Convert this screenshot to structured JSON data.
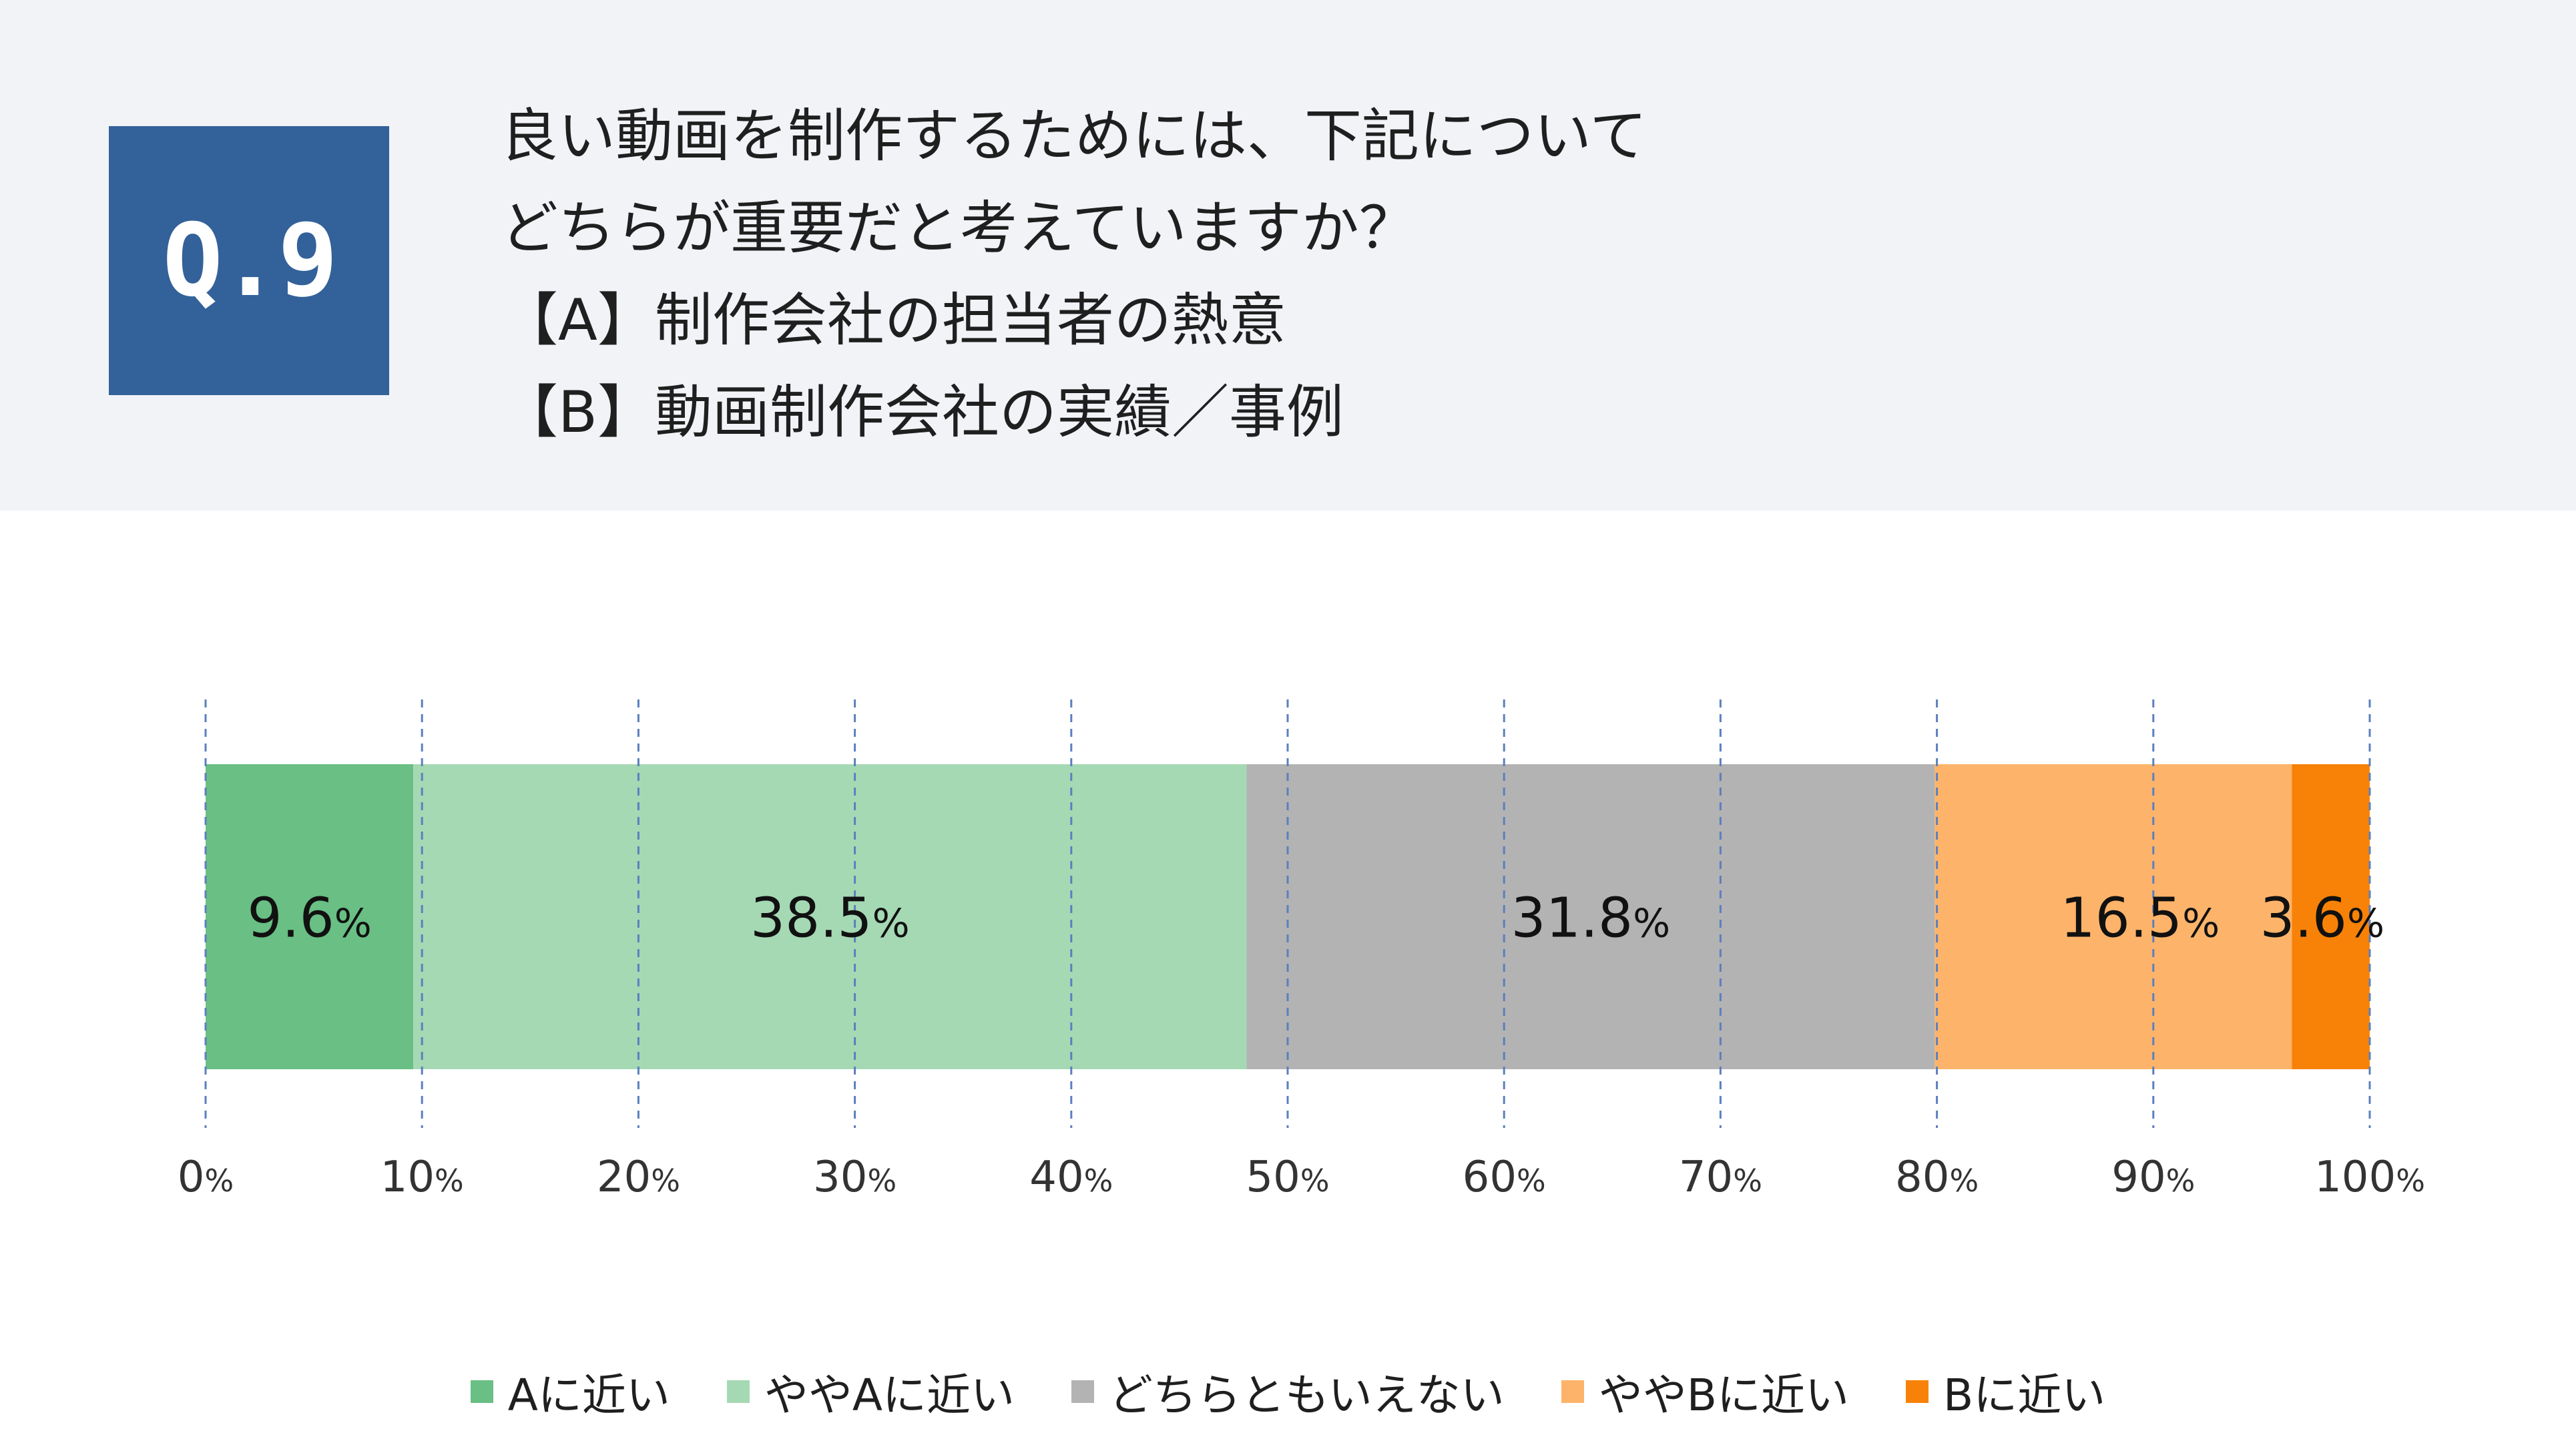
{
  "question": {
    "label": "Q.9",
    "lines": [
      "良い動画を制作するためには、下記について",
      "どちらが重要だと考えていますか？",
      "【A】制作会社の担当者の熱意",
      "【B】動画制作会社の実績／事例"
    ]
  },
  "colors": {
    "header_bg": "#f1f3f7",
    "qbox": "#336199",
    "grid": "#5b7fbf"
  },
  "chart_data": {
    "type": "bar",
    "orientation": "horizontal",
    "stacked": true,
    "normalized": true,
    "unit": "%",
    "x_ticks": [
      0,
      10,
      20,
      30,
      40,
      50,
      60,
      70,
      80,
      90,
      100
    ],
    "xlim": [
      0,
      100
    ],
    "grid": true,
    "legend_position": "bottom",
    "series": [
      {
        "name": "Aに近い",
        "value": 9.6,
        "label": "9.6",
        "color": "#69bf84"
      },
      {
        "name": "ややAに近い",
        "value": 38.5,
        "label": "38.5",
        "color": "#a5d9b4"
      },
      {
        "name": "どちらともいえない",
        "value": 31.8,
        "label": "31.8",
        "color": "#b3b3b3"
      },
      {
        "name": "ややBに近い",
        "value": 16.5,
        "label": "16.5",
        "color": "#fdb46a"
      },
      {
        "name": "Bに近い",
        "value": 3.6,
        "label": "3.6",
        "color": "#f88207"
      }
    ]
  }
}
